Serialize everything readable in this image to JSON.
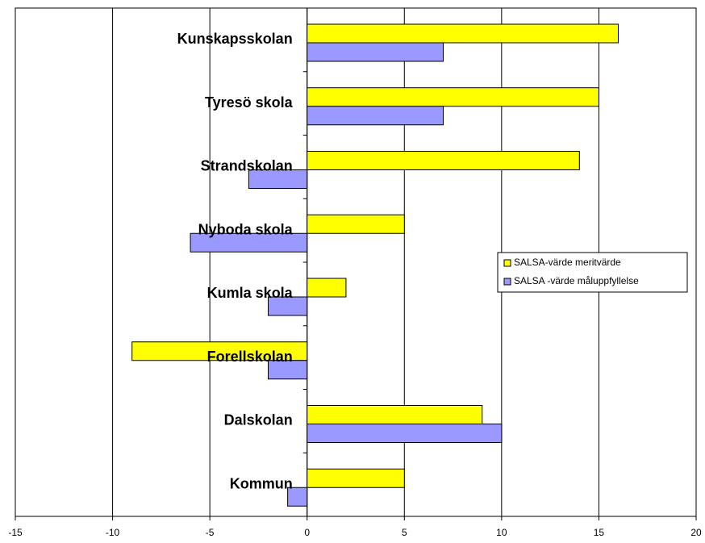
{
  "chart_data": {
    "type": "bar",
    "orientation": "horizontal",
    "categories": [
      "Kunskapsskolan",
      "Tyresö skola",
      "Strandskolan",
      "Nyboda skola",
      "Kumla skola",
      "Forellskolan",
      "Dalskolan",
      "Kommun"
    ],
    "series": [
      {
        "name": "SALSA-värde meritvärde",
        "color": "#ffff00",
        "values": [
          16,
          15,
          14,
          5,
          2,
          -9,
          9,
          5
        ]
      },
      {
        "name": "SALSA -värde måluppfyllelse",
        "color": "#9999ff",
        "values": [
          7,
          7,
          -3,
          -6,
          -2,
          -2,
          10,
          -1
        ]
      }
    ],
    "xlim": [
      -15,
      20
    ],
    "xticks": [
      -15,
      -10,
      -5,
      0,
      5,
      10,
      15,
      20
    ],
    "grid": true,
    "legend": "right"
  }
}
